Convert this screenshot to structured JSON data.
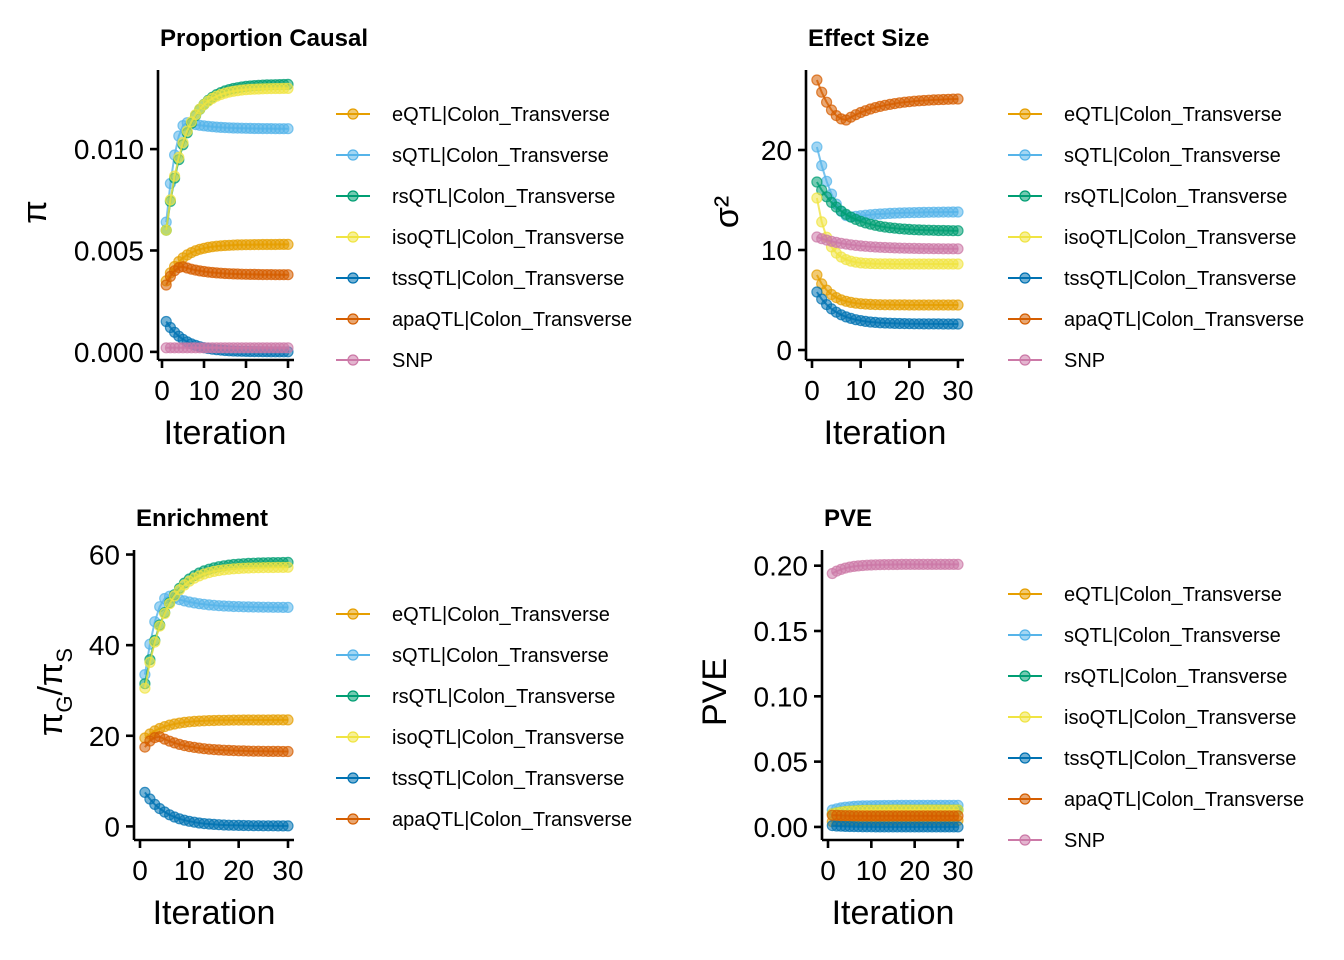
{
  "colors": {
    "eQTL": "#E69F00",
    "sQTL": "#56B4E9",
    "rsQTL": "#009E73",
    "isoQTL": "#F0E442",
    "tssQTL": "#0072B2",
    "apaQTL": "#D55E00",
    "SNP": "#CC79A7"
  },
  "chart_data": [
    {
      "type": "line",
      "title": "Proportion Causal",
      "xlabel": "Iteration",
      "ylabel": "π",
      "xlim": [
        0,
        30
      ],
      "ylim": [
        -0.0004,
        0.0139
      ],
      "x_ticks": [
        "0",
        "10",
        "20",
        "30"
      ],
      "y_ticks": [
        "0.000",
        "0.005",
        "0.010"
      ],
      "legend": [
        "eQTL|Colon_Transverse",
        "sQTL|Colon_Transverse",
        "rsQTL|Colon_Transverse",
        "isoQTL|Colon_Transverse",
        "tssQTL|Colon_Transverse",
        "apaQTL|Colon_Transverse",
        "SNP"
      ],
      "series": [
        {
          "name": "eQTL|Colon_Transverse",
          "color": "eQTL",
          "start": 0.0035,
          "end": 0.0053,
          "rate": 0.25
        },
        {
          "name": "sQTL|Colon_Transverse",
          "color": "sQTL",
          "start": 0.0064,
          "end": 0.011,
          "peak": 0.0113,
          "peak_iter": 6
        },
        {
          "name": "rsQTL|Colon_Transverse",
          "color": "rsQTL",
          "start": 0.006,
          "end": 0.0132,
          "rate": 0.22
        },
        {
          "name": "isoQTL|Colon_Transverse",
          "color": "isoQTL",
          "start": 0.006,
          "end": 0.013,
          "rate": 0.24
        },
        {
          "name": "tssQTL|Colon_Transverse",
          "color": "tssQTL",
          "start": 0.0015,
          "end": 0.0,
          "rate": 0.22
        },
        {
          "name": "apaQTL|Colon_Transverse",
          "color": "apaQTL",
          "start": 0.0033,
          "end": 0.0038,
          "peak": 0.0042,
          "peak_iter": 5
        },
        {
          "name": "SNP",
          "color": "SNP",
          "start": 0.0002,
          "end": 0.0002,
          "rate": 0.2
        }
      ]
    },
    {
      "type": "line",
      "title": "Effect Size",
      "xlabel": "Iteration",
      "ylabel": "σ²",
      "xlim": [
        0,
        30
      ],
      "ylim": [
        -1,
        28
      ],
      "x_ticks": [
        "0",
        "10",
        "20",
        "30"
      ],
      "y_ticks": [
        "0",
        "10",
        "20"
      ],
      "legend": [
        "eQTL|Colon_Transverse",
        "sQTL|Colon_Transverse",
        "rsQTL|Colon_Transverse",
        "isoQTL|Colon_Transverse",
        "tssQTL|Colon_Transverse",
        "apaQTL|Colon_Transverse",
        "SNP"
      ],
      "series": [
        {
          "name": "eQTL|Colon_Transverse",
          "color": "eQTL",
          "start": 7.5,
          "end": 4.5,
          "rate": 0.35
        },
        {
          "name": "sQTL|Colon_Transverse",
          "color": "sQTL",
          "start": 20.3,
          "end": 13.8,
          "dip": 13.3,
          "dip_iter": 8
        },
        {
          "name": "rsQTL|Colon_Transverse",
          "color": "rsQTL",
          "start": 16.8,
          "end": 11.9,
          "rate": 0.18
        },
        {
          "name": "isoQTL|Colon_Transverse",
          "color": "isoQTL",
          "start": 15.2,
          "end": 8.6,
          "rate": 0.45
        },
        {
          "name": "tssQTL|Colon_Transverse",
          "color": "tssQTL",
          "start": 5.8,
          "end": 2.6,
          "rate": 0.25
        },
        {
          "name": "apaQTL|Colon_Transverse",
          "color": "apaQTL",
          "start": 27.0,
          "end": 25.1,
          "dip": 23.0,
          "dip_iter": 7
        },
        {
          "name": "SNP",
          "color": "SNP",
          "start": 11.3,
          "end": 10.1,
          "rate": 0.15
        }
      ]
    },
    {
      "type": "line",
      "title": "Enrichment",
      "xlabel": "Iteration",
      "ylabel": "πG/πS",
      "ylabel_main": "π",
      "ylabel_sub1": "G",
      "ylabel_sub2": "S",
      "xlim": [
        0,
        30
      ],
      "ylim": [
        -3,
        61
      ],
      "x_ticks": [
        "0",
        "10",
        "20",
        "30"
      ],
      "y_ticks": [
        "0",
        "20",
        "40",
        "60"
      ],
      "legend": [
        "eQTL|Colon_Transverse",
        "sQTL|Colon_Transverse",
        "rsQTL|Colon_Transverse",
        "isoQTL|Colon_Transverse",
        "tssQTL|Colon_Transverse",
        "apaQTL|Colon_Transverse"
      ],
      "series": [
        {
          "name": "eQTL|Colon_Transverse",
          "color": "eQTL",
          "start": 19.5,
          "end": 23.5,
          "rate": 0.25
        },
        {
          "name": "sQTL|Colon_Transverse",
          "color": "sQTL",
          "start": 33.5,
          "end": 48.3,
          "peak": 50.8,
          "peak_iter": 6
        },
        {
          "name": "rsQTL|Colon_Transverse",
          "color": "rsQTL",
          "start": 31.5,
          "end": 58.3,
          "rate": 0.22
        },
        {
          "name": "isoQTL|Colon_Transverse",
          "color": "isoQTL",
          "start": 30.5,
          "end": 57.2,
          "rate": 0.24
        },
        {
          "name": "tssQTL|Colon_Transverse",
          "color": "tssQTL",
          "start": 7.5,
          "end": 0.1,
          "rate": 0.22
        },
        {
          "name": "apaQTL|Colon_Transverse",
          "color": "apaQTL",
          "start": 17.5,
          "end": 16.5,
          "peak": 19.8,
          "peak_iter": 4
        }
      ]
    },
    {
      "type": "line",
      "title": "PVE",
      "xlabel": "Iteration",
      "ylabel": "PVE",
      "xlim": [
        0,
        30
      ],
      "ylim": [
        -0.01,
        0.212
      ],
      "x_ticks": [
        "0",
        "10",
        "20",
        "30"
      ],
      "y_ticks": [
        "0.00",
        "0.05",
        "0.10",
        "0.15",
        "0.20"
      ],
      "legend": [
        "eQTL|Colon_Transverse",
        "sQTL|Colon_Transverse",
        "rsQTL|Colon_Transverse",
        "isoQTL|Colon_Transverse",
        "tssQTL|Colon_Transverse",
        "apaQTL|Colon_Transverse",
        "SNP"
      ],
      "series": [
        {
          "name": "eQTL|Colon_Transverse",
          "color": "eQTL",
          "start": 0.004,
          "end": 0.005,
          "rate": 0.3
        },
        {
          "name": "sQTL|Colon_Transverse",
          "color": "sQTL",
          "start": 0.013,
          "end": 0.0165,
          "rate": 0.3
        },
        {
          "name": "rsQTL|Colon_Transverse",
          "color": "rsQTL",
          "start": 0.01,
          "end": 0.013,
          "rate": 0.3
        },
        {
          "name": "isoQTL|Colon_Transverse",
          "color": "isoQTL",
          "start": 0.01,
          "end": 0.013,
          "rate": 0.3
        },
        {
          "name": "tssQTL|Colon_Transverse",
          "color": "tssQTL",
          "start": 0.001,
          "end": 0.0,
          "rate": 0.3
        },
        {
          "name": "apaQTL|Colon_Transverse",
          "color": "apaQTL",
          "start": 0.009,
          "end": 0.0085,
          "rate": 0.3
        },
        {
          "name": "SNP",
          "color": "SNP",
          "start": 0.194,
          "end": 0.201,
          "rate": 0.3
        }
      ]
    }
  ]
}
